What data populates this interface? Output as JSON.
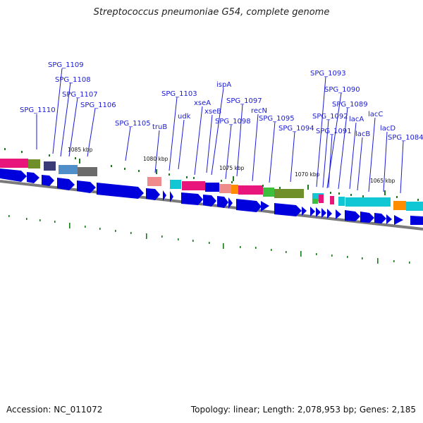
{
  "title": "Streptococcus pneumoniae G54, complete genome",
  "accession": "Accession: NC_011072",
  "summary": "Topology: linear; Length: 2,078,953 bp; Genes: 2,185",
  "colors": {
    "label": "#1a1ad6",
    "leader": "#1a1ad6",
    "gene_arrow": "#0000dd",
    "backbone": "#7a7a7a",
    "tick": "#1c7a1c"
  },
  "kbp_labels": [
    "1085 kbp",
    "1080 kbp",
    "1075 kbp",
    "1070 kbp",
    "1065 kbp"
  ],
  "gene_labels": [
    "SPG_1109",
    "SPG_1108",
    "SPG_1107",
    "SPG_1106",
    "SPG_1110",
    "SPG_1105",
    "SPG_1103",
    "truB",
    "udk",
    "xseA",
    "xseB",
    "ispA",
    "SPG_1097",
    "SPG_1098",
    "recN",
    "SPG_1095",
    "SPG_1094",
    "SPG_1093",
    "SPG_1090",
    "SPG_1092",
    "SPG_1091",
    "SPG_1089",
    "lacA",
    "lacB",
    "lacC",
    "lacD",
    "SPG_1084"
  ]
}
